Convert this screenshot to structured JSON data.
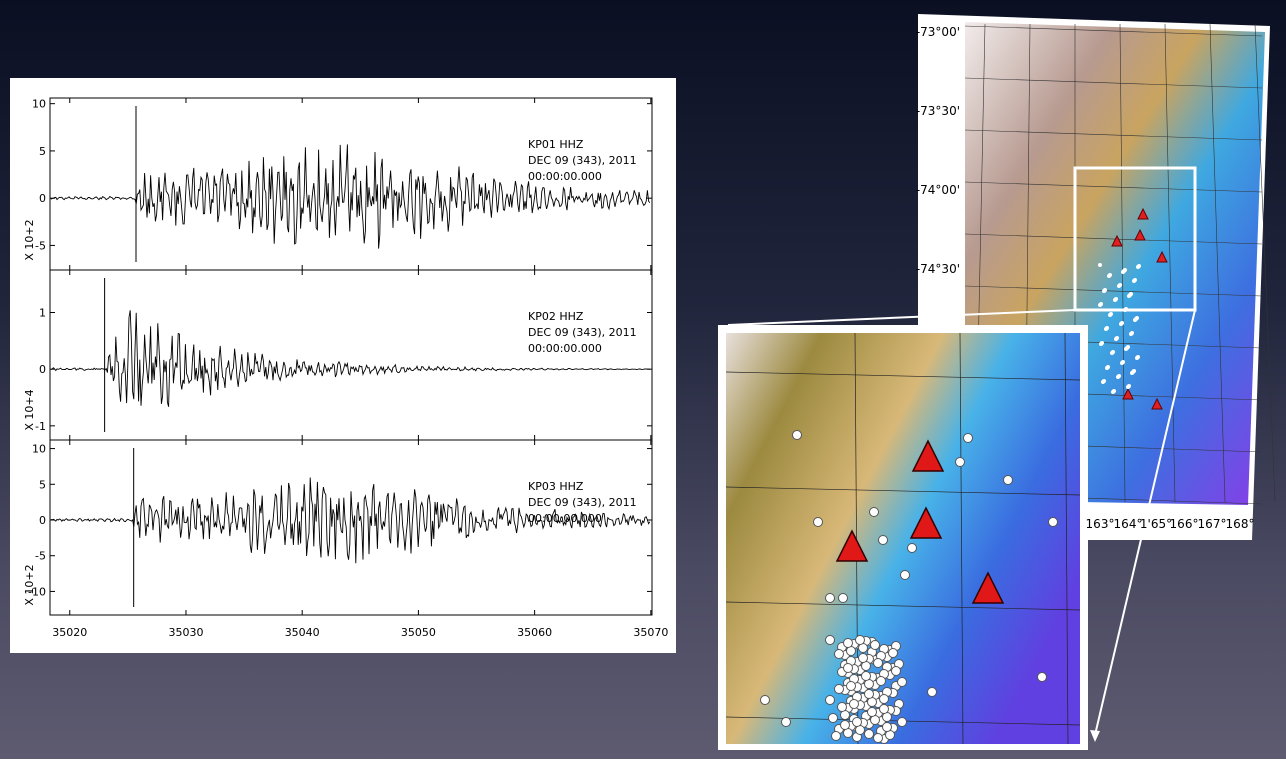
{
  "seismograms": {
    "xlim": [
      35018.3,
      35070.1
    ],
    "xticks": [
      35020,
      35030,
      35040,
      35050,
      35060,
      35070
    ],
    "panels": [
      {
        "station": "KP01   HHZ",
        "date": "DEC 09 (343), 2011",
        "time": "00:00:00.000",
        "scale": "X 10+2",
        "ylim": [
          -7.6,
          10.6
        ],
        "yticks": [
          -5,
          0,
          5,
          10
        ],
        "pick": 35025.7
      },
      {
        "station": "KP02   HHZ",
        "date": "DEC 09 (343), 2011",
        "time": "00:00:00.000",
        "scale": "X 10+4",
        "ylim": [
          -1.25,
          1.75
        ],
        "yticks": [
          -1,
          0,
          1
        ],
        "pick": 35023
      },
      {
        "station": "KP03   HHZ",
        "date": "DEC 09 (343), 2011",
        "time": "00:00:00.000",
        "scale": "X 10+2",
        "ylim": [
          -13.3,
          11.2
        ],
        "yticks": [
          -10,
          -5,
          0,
          5,
          10
        ],
        "pick": 35025.5
      }
    ]
  },
  "map": {
    "lat_labels": [
      "-73°00'",
      "-73°30'",
      "-74°00'",
      "-74°30'"
    ],
    "lon_labels": [
      "163°",
      "164°",
      "1'65°",
      "166°",
      "167°",
      "168°"
    ]
  }
}
